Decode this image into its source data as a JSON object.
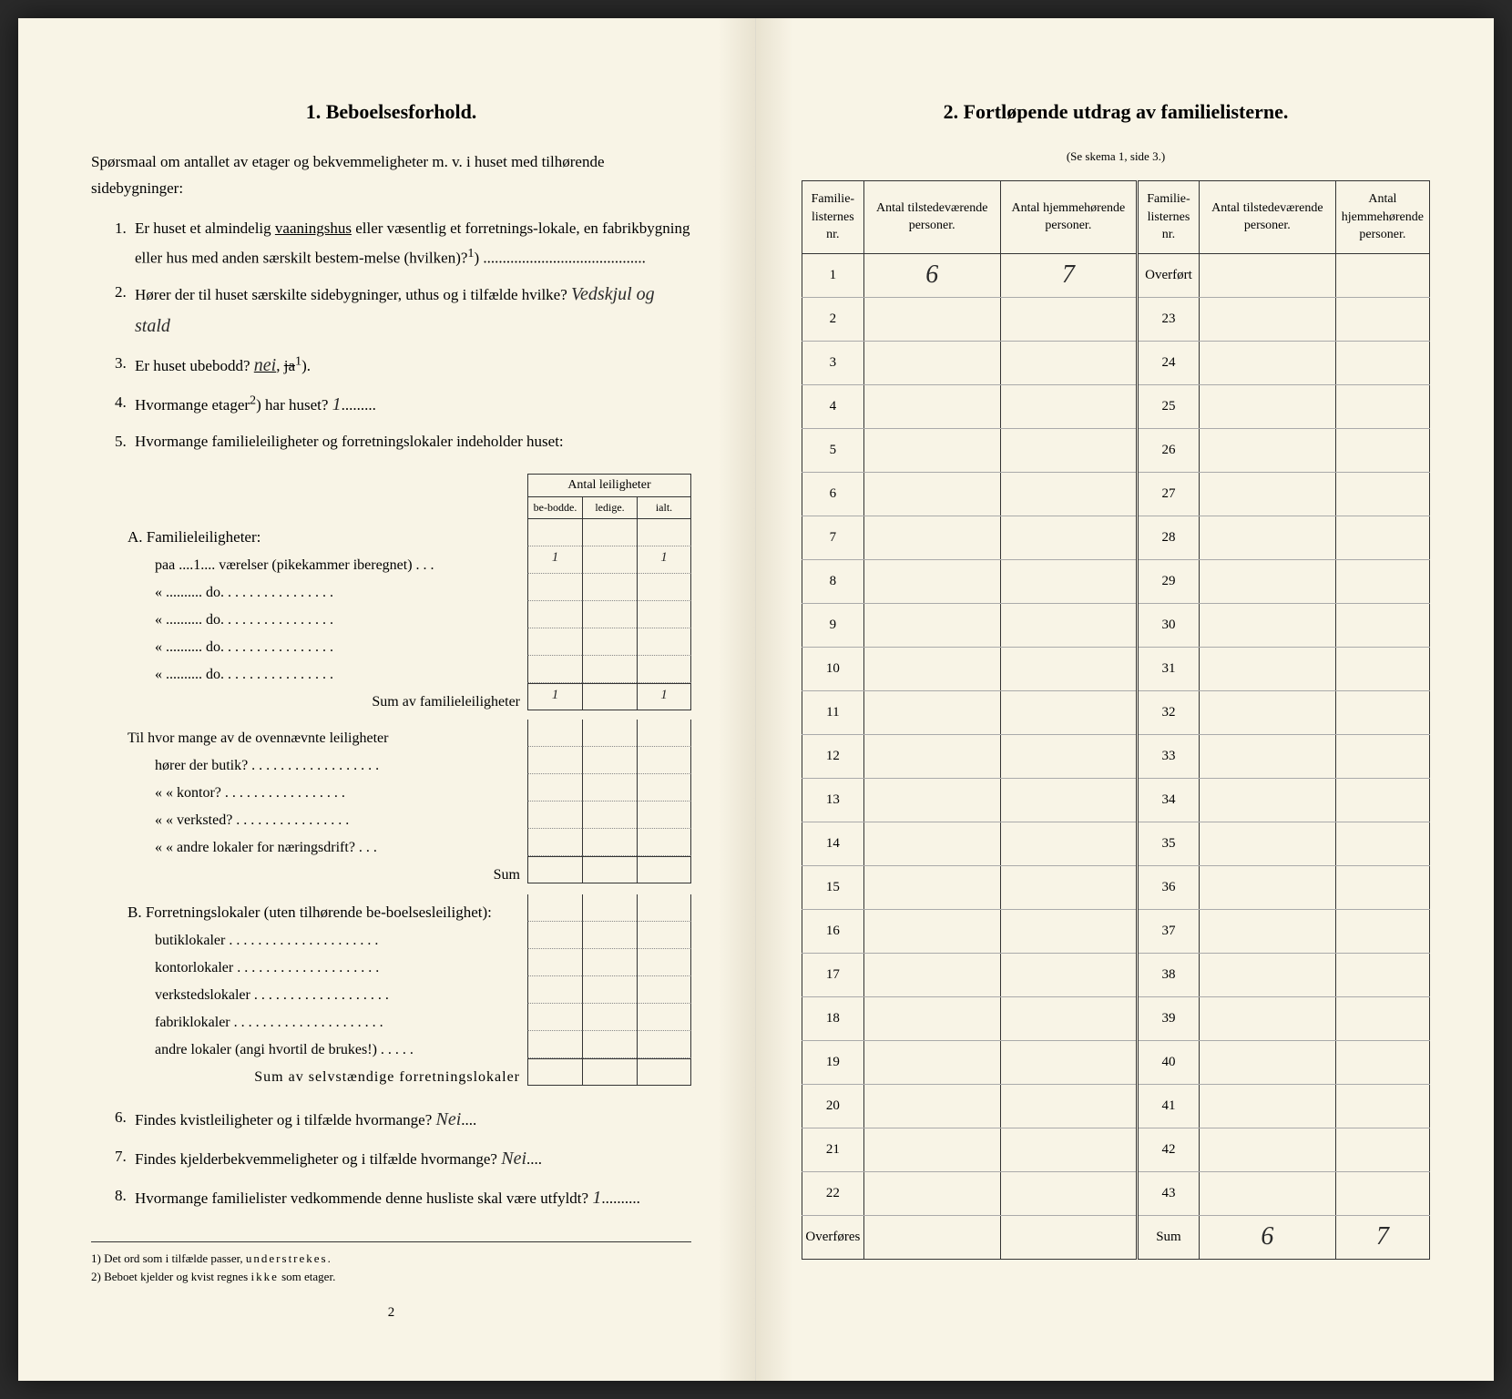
{
  "left": {
    "title": "1.   Beboelsesforhold.",
    "intro": "Spørsmaal om antallet av etager og bekvemmeligheter m. v. i huset med tilhørende sidebygninger:",
    "q1": {
      "num": "1.",
      "text_a": "Er huset et almindelig ",
      "u1": "vaaningshus",
      "text_b": " eller væsentlig et forretnings-lokale, en fabrikbygning eller hus med anden særskilt bestem-melse (hvilken)?",
      "sup": "1",
      "dots": ") .........................................."
    },
    "q2": {
      "num": "2.",
      "text": "Hører der til huset særskilte sidebygninger, uthus og i tilfælde hvilke?",
      "answer": "Vedskjul og stald"
    },
    "q3": {
      "num": "3.",
      "text": "Er huset ubebodd? ",
      "nei": "nei",
      "ja": "ja",
      "sup": "1",
      "close": ")."
    },
    "q4": {
      "num": "4.",
      "text": "Hvormange etager",
      "sup": "2",
      "text_b": ") har huset?",
      "answer": "1"
    },
    "q5": {
      "num": "5.",
      "text": "Hvormange familieleiligheter og forretningslokaler indeholder huset:"
    },
    "antal_header": "Antal leiligheter",
    "col_headers": {
      "bebodde": "be-bodde.",
      "ledige": "ledige.",
      "ialt": "ialt."
    },
    "sectionA": {
      "title": "A. Familieleiligheter:",
      "rows": [
        {
          "label": "paa ....1.... værelser (pikekammer iberegnet) . . .",
          "v1": "1",
          "v2": "",
          "v3": "1"
        },
        {
          "label": "«  ..........   do.      . . . . . . . . . . . . . . .",
          "v1": "",
          "v2": "",
          "v3": ""
        },
        {
          "label": "«  ..........   do.      . . . . . . . . . . . . . . .",
          "v1": "",
          "v2": "",
          "v3": ""
        },
        {
          "label": "«  ..........   do.      . . . . . . . . . . . . . . .",
          "v1": "",
          "v2": "",
          "v3": ""
        },
        {
          "label": "«  ..........   do.      . . . . . . . . . . . . . . .",
          "v1": "",
          "v2": "",
          "v3": ""
        }
      ],
      "sum_label": "Sum av familieleiligheter",
      "sum": {
        "v1": "1",
        "v2": "",
        "v3": "1"
      },
      "sub_q": "Til hvor mange av de ovennævnte leiligheter",
      "sub_rows": [
        {
          "label": "hører der butik? . . . . . . . . . . . . . . . . . .",
          "v1": "",
          "v2": "",
          "v3": ""
        },
        {
          "label": "«      «  kontor? . . . . . . . . . . . . . . . . .",
          "v1": "",
          "v2": "",
          "v3": ""
        },
        {
          "label": "«      «  verksted? . . . . . . . . . . . . . . . .",
          "v1": "",
          "v2": "",
          "v3": ""
        },
        {
          "label": "«      «  andre lokaler for næringsdrift?  . . .",
          "v1": "",
          "v2": "",
          "v3": ""
        }
      ],
      "sub_sum_label": "Sum"
    },
    "sectionB": {
      "title": "B. Forretningslokaler (uten tilhørende be-boelsesleilighet):",
      "rows": [
        {
          "label": "butiklokaler . . . . . . . . . . . . . . . . . . . . .",
          "v1": "",
          "v2": "",
          "v3": ""
        },
        {
          "label": "kontorlokaler  . . . . . . . . . . . . . . . . . . . .",
          "v1": "",
          "v2": "",
          "v3": ""
        },
        {
          "label": "verkstedslokaler . . . . . . . . . . . . . . . . . . .",
          "v1": "",
          "v2": "",
          "v3": ""
        },
        {
          "label": "fabriklokaler . . . . . . . . . . . . . . . . . . . . .",
          "v1": "",
          "v2": "",
          "v3": ""
        },
        {
          "label": "andre lokaler (angi hvortil de brukes!) . . . . .",
          "v1": "",
          "v2": "",
          "v3": ""
        }
      ],
      "sum_label": "Sum av selvstændige forretningslokaler"
    },
    "q6": {
      "num": "6.",
      "text": "Findes kvistleiligheter og i tilfælde hvormange?",
      "answer": "Nei"
    },
    "q7": {
      "num": "7.",
      "text": "Findes kjelderbekvemmeligheter og i tilfælde hvormange?",
      "answer": "Nei"
    },
    "q8": {
      "num": "8.",
      "text": "Hvormange familielister vedkommende denne husliste skal være utfyldt?",
      "answer": "1"
    },
    "footnote1": "1)  Det ord som i tilfælde passer, ",
    "footnote1_u": "understrekes",
    "footnote1_end": ".",
    "footnote2": "2)  Beboet kjelder og kvist regnes ",
    "footnote2_sp": "ikke",
    "footnote2_end": " som etager.",
    "page_num": "2"
  },
  "right": {
    "title": "2.   Fortløpende utdrag av familielisterne.",
    "subtitle": "(Se skema 1, side 3.)",
    "headers": {
      "nr": "Familie-listernes nr.",
      "tilstede": "Antal tilstedeværende personer.",
      "hjemme": "Antal hjemmehørende personer."
    },
    "rows_left": [
      {
        "nr": "1",
        "t": "6",
        "h": "7"
      },
      {
        "nr": "2",
        "t": "",
        "h": ""
      },
      {
        "nr": "3",
        "t": "",
        "h": ""
      },
      {
        "nr": "4",
        "t": "",
        "h": ""
      },
      {
        "nr": "5",
        "t": "",
        "h": ""
      },
      {
        "nr": "6",
        "t": "",
        "h": ""
      },
      {
        "nr": "7",
        "t": "",
        "h": ""
      },
      {
        "nr": "8",
        "t": "",
        "h": ""
      },
      {
        "nr": "9",
        "t": "",
        "h": ""
      },
      {
        "nr": "10",
        "t": "",
        "h": ""
      },
      {
        "nr": "11",
        "t": "",
        "h": ""
      },
      {
        "nr": "12",
        "t": "",
        "h": ""
      },
      {
        "nr": "13",
        "t": "",
        "h": ""
      },
      {
        "nr": "14",
        "t": "",
        "h": ""
      },
      {
        "nr": "15",
        "t": "",
        "h": ""
      },
      {
        "nr": "16",
        "t": "",
        "h": ""
      },
      {
        "nr": "17",
        "t": "",
        "h": ""
      },
      {
        "nr": "18",
        "t": "",
        "h": ""
      },
      {
        "nr": "19",
        "t": "",
        "h": ""
      },
      {
        "nr": "20",
        "t": "",
        "h": ""
      },
      {
        "nr": "21",
        "t": "",
        "h": ""
      },
      {
        "nr": "22",
        "t": "",
        "h": ""
      }
    ],
    "rows_right": [
      {
        "nr": "Overført",
        "t": "",
        "h": ""
      },
      {
        "nr": "23",
        "t": "",
        "h": ""
      },
      {
        "nr": "24",
        "t": "",
        "h": ""
      },
      {
        "nr": "25",
        "t": "",
        "h": ""
      },
      {
        "nr": "26",
        "t": "",
        "h": ""
      },
      {
        "nr": "27",
        "t": "",
        "h": ""
      },
      {
        "nr": "28",
        "t": "",
        "h": ""
      },
      {
        "nr": "29",
        "t": "",
        "h": ""
      },
      {
        "nr": "30",
        "t": "",
        "h": ""
      },
      {
        "nr": "31",
        "t": "",
        "h": ""
      },
      {
        "nr": "32",
        "t": "",
        "h": ""
      },
      {
        "nr": "33",
        "t": "",
        "h": ""
      },
      {
        "nr": "34",
        "t": "",
        "h": ""
      },
      {
        "nr": "35",
        "t": "",
        "h": ""
      },
      {
        "nr": "36",
        "t": "",
        "h": ""
      },
      {
        "nr": "37",
        "t": "",
        "h": ""
      },
      {
        "nr": "38",
        "t": "",
        "h": ""
      },
      {
        "nr": "39",
        "t": "",
        "h": ""
      },
      {
        "nr": "40",
        "t": "",
        "h": ""
      },
      {
        "nr": "41",
        "t": "",
        "h": ""
      },
      {
        "nr": "42",
        "t": "",
        "h": ""
      },
      {
        "nr": "43",
        "t": "",
        "h": ""
      }
    ],
    "overfores": "Overføres",
    "sum_label": "Sum",
    "sum_t": "6",
    "sum_h": "7"
  }
}
